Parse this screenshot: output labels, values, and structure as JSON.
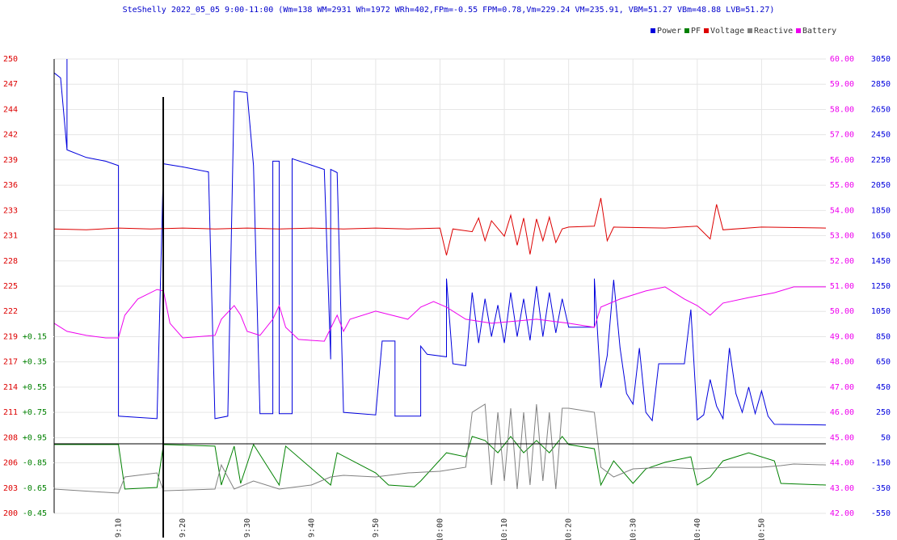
{
  "chart_data": {
    "type": "line",
    "title": "SteShelly 2022_05_05 9:00-11:00 (Wm=138 WM=2931 Wh=1972 WRh=402,FPm=-0.55 FPM=0.78,Vm=229.24 VM=235.91, VBM=51.27 VBm=48.88 LVB=51.27)",
    "xlim": [
      "9:00",
      "11:00"
    ],
    "xticks": [
      "9:10",
      "9:20",
      "9:30",
      "9:40",
      "9:50",
      "10:00",
      "10:10",
      "10:20",
      "10:30",
      "10:40",
      "10:50"
    ],
    "ylim": [
      200,
      250
    ],
    "yticks": [
      {
        "value": 250,
        "label": "250"
      },
      {
        "value": 247.22,
        "label": "247"
      },
      {
        "value": 244.44,
        "label": "244"
      },
      {
        "value": 241.67,
        "label": "242"
      },
      {
        "value": 238.89,
        "label": "239"
      },
      {
        "value": 236.11,
        "label": "236"
      },
      {
        "value": 233.33,
        "label": "233"
      },
      {
        "value": 230.56,
        "label": "231"
      },
      {
        "value": 227.78,
        "label": "228"
      },
      {
        "value": 225,
        "label": "225"
      },
      {
        "value": 222.22,
        "label": "222"
      },
      {
        "value": 219.44,
        "label": "219"
      },
      {
        "value": 216.67,
        "label": "217"
      },
      {
        "value": 213.89,
        "label": "214"
      },
      {
        "value": 211.11,
        "label": "211"
      },
      {
        "value": 208.33,
        "label": "208"
      },
      {
        "value": 205.56,
        "label": "206"
      },
      {
        "value": 202.78,
        "label": "203"
      },
      {
        "value": 200,
        "label": "200"
      }
    ],
    "pflim": [
      -0.45,
      -4.05
    ],
    "pfticks": [
      {
        "value": -1.85,
        "label": "+0.15"
      },
      {
        "value": -1.65,
        "label": "+0.35"
      },
      {
        "value": -1.45,
        "label": "+0.55"
      },
      {
        "value": -1.25,
        "label": "+0.75"
      },
      {
        "value": -1.05,
        "label": "+0.95"
      },
      {
        "value": -0.85,
        "label": "-0.85"
      },
      {
        "value": -0.65,
        "label": "-0.65"
      },
      {
        "value": -0.45,
        "label": "-0.45"
      }
    ],
    "y2lim": [
      42,
      60
    ],
    "y2ticks": [
      {
        "value": 60,
        "label": "60.00"
      },
      {
        "value": 59,
        "label": "59.00"
      },
      {
        "value": 58,
        "label": "58.00"
      },
      {
        "value": 57,
        "label": "57.00"
      },
      {
        "value": 56,
        "label": "56.00"
      },
      {
        "value": 55,
        "label": "55.00"
      },
      {
        "value": 54,
        "label": "54.00"
      },
      {
        "value": 53,
        "label": "53.00"
      },
      {
        "value": 52,
        "label": "52.00"
      },
      {
        "value": 51,
        "label": "51.00"
      },
      {
        "value": 50,
        "label": "50.00"
      },
      {
        "value": 49,
        "label": "49.00"
      },
      {
        "value": 48,
        "label": "48.00"
      },
      {
        "value": 47,
        "label": "47.00"
      },
      {
        "value": 46,
        "label": "46.00"
      },
      {
        "value": 45,
        "label": "45.00"
      },
      {
        "value": 44,
        "label": "44.00"
      },
      {
        "value": 43,
        "label": "43.00"
      },
      {
        "value": 42,
        "label": "42.00"
      }
    ],
    "y3lim": [
      -550,
      3050
    ],
    "y3ticks": [
      3050,
      2850,
      2650,
      2450,
      2250,
      2050,
      1850,
      1650,
      1450,
      1250,
      1050,
      850,
      650,
      450,
      250,
      50,
      -150,
      -350,
      -550
    ],
    "grid": true,
    "legend": "top-right",
    "series": [
      {
        "name": "Power",
        "color": "#0000dd",
        "axis": "y3",
        "x": [
          "9:00",
          "9:01",
          "9:02",
          "9:02",
          "9:02",
          "9:05",
          "9:08",
          "9:10",
          "9:10",
          "9:16",
          "9:17",
          "9:20",
          "9:24",
          "9:25",
          "9:27",
          "9:28",
          "9:30",
          "9:31",
          "9:32",
          "9:34",
          "9:34",
          "9:35",
          "9:35",
          "9:37",
          "9:37",
          "9:42",
          "9:43",
          "9:43",
          "9:44",
          "9:45",
          "9:50",
          "9:51",
          "9:53",
          "9:53",
          "9:57",
          "9:57",
          "9:58",
          "10:01",
          "10:01",
          "10:02",
          "10:04",
          "10:05",
          "10:06",
          "10:07",
          "10:08",
          "10:09",
          "10:10",
          "10:11",
          "10:12",
          "10:13",
          "10:14",
          "10:15",
          "10:16",
          "10:17",
          "10:18",
          "10:19",
          "10:20",
          "10:24",
          "10:24",
          "10:25",
          "10:26",
          "10:27",
          "10:28",
          "10:29",
          "10:30",
          "10:31",
          "10:32",
          "10:33",
          "10:34",
          "10:38",
          "10:39",
          "10:40",
          "10:41",
          "10:42",
          "10:43",
          "10:44",
          "10:45",
          "10:46",
          "10:47",
          "10:48",
          "10:49",
          "10:50",
          "10:51",
          "10:52",
          "11:00"
        ],
        "values": [
          2940,
          2900,
          2330,
          3050,
          2330,
          2270,
          2240,
          2205,
          220,
          200,
          2220,
          2195,
          2155,
          200,
          220,
          2795,
          2785,
          2205,
          240,
          240,
          2240,
          2240,
          240,
          240,
          2260,
          2175,
          670,
          2175,
          2150,
          250,
          230,
          815,
          815,
          220,
          220,
          775,
          710,
          690,
          1310,
          635,
          620,
          1200,
          800,
          1150,
          850,
          1100,
          800,
          1200,
          850,
          1150,
          820,
          1250,
          850,
          1200,
          880,
          1150,
          925,
          925,
          1310,
          445,
          700,
          1300,
          760,
          400,
          315,
          760,
          250,
          185,
          635,
          635,
          1065,
          190,
          230,
          510,
          300,
          200,
          760,
          400,
          250,
          450,
          240,
          420,
          220,
          155,
          150
        ]
      },
      {
        "name": "PF",
        "color": "#008000",
        "axis": "pf",
        "x": [
          "9:00",
          "9:10",
          "9:11",
          "9:16",
          "9:17",
          "9:25",
          "9:26",
          "9:28",
          "9:29",
          "9:31",
          "9:35",
          "9:36",
          "9:43",
          "9:44",
          "9:50",
          "9:52",
          "9:56",
          "9:57",
          "10:01",
          "10:04",
          "10:05",
          "10:07",
          "10:09",
          "10:11",
          "10:13",
          "10:15",
          "10:17",
          "10:19",
          "10:20",
          "10:24",
          "10:25",
          "10:27",
          "10:30",
          "10:32",
          "10:35",
          "10:39",
          "10:40",
          "10:42",
          "10:44",
          "10:48",
          "10:52",
          "10:53",
          "11:00"
        ],
        "values": [
          -0.995,
          -0.995,
          -0.642,
          -0.655,
          -0.995,
          -0.982,
          -0.674,
          -0.982,
          -0.687,
          -0.995,
          -0.674,
          -0.982,
          -0.674,
          -0.93,
          -0.77,
          -0.674,
          -0.661,
          -0.706,
          -0.93,
          -0.898,
          -1.059,
          -1.027,
          -0.93,
          -1.059,
          -0.93,
          -1.027,
          -0.93,
          -1.059,
          -0.995,
          -0.962,
          -0.674,
          -0.866,
          -0.687,
          -0.802,
          -0.854,
          -0.898,
          -0.674,
          -0.738,
          -0.866,
          -0.93,
          -0.866,
          -0.687,
          -0.674
        ]
      },
      {
        "name": "Voltage",
        "color": "#dd0000",
        "axis": "y",
        "x": [
          "9:00",
          "9:05",
          "9:10",
          "9:15",
          "9:20",
          "9:25",
          "9:30",
          "9:35",
          "9:40",
          "9:45",
          "9:50",
          "9:55",
          "10:00",
          "10:01",
          "10:02",
          "10:05",
          "10:06",
          "10:07",
          "10:08",
          "10:10",
          "10:11",
          "10:12",
          "10:13",
          "10:14",
          "10:15",
          "10:16",
          "10:17",
          "10:18",
          "10:19",
          "10:20",
          "10:24",
          "10:25",
          "10:26",
          "10:27",
          "10:35",
          "10:40",
          "10:42",
          "10:43",
          "10:44",
          "10:50",
          "11:00"
        ],
        "values": [
          231.3,
          231.2,
          231.4,
          231.3,
          231.4,
          231.3,
          231.4,
          231.3,
          231.4,
          231.3,
          231.4,
          231.3,
          231.4,
          228.4,
          231.3,
          231.0,
          232.5,
          230.0,
          232.2,
          230.5,
          232.8,
          229.5,
          232.5,
          228.5,
          232.4,
          230.0,
          232.6,
          229.8,
          231.3,
          231.5,
          231.6,
          234.7,
          230.0,
          231.5,
          231.4,
          231.6,
          230.2,
          234.0,
          231.2,
          231.5,
          231.4
        ]
      },
      {
        "name": "Reactive",
        "color": "#808080",
        "axis": "y3",
        "x": [
          "9:00",
          "9:10",
          "9:11",
          "9:16",
          "9:17",
          "9:25",
          "9:26",
          "9:28",
          "9:31",
          "9:35",
          "9:40",
          "9:43",
          "9:45",
          "9:50",
          "9:55",
          "10:00",
          "10:04",
          "10:05",
          "10:07",
          "10:08",
          "10:09",
          "10:10",
          "10:11",
          "10:12",
          "10:13",
          "10:14",
          "10:15",
          "10:16",
          "10:17",
          "10:18",
          "10:19",
          "10:20",
          "10:24",
          "10:25",
          "10:27",
          "10:30",
          "10:35",
          "10:40",
          "10:45",
          "10:50",
          "10:53",
          "10:55",
          "11:00"
        ],
        "values": [
          -358,
          -390,
          -262,
          -230,
          -371,
          -358,
          -166,
          -358,
          -294,
          -358,
          -326,
          -262,
          -249,
          -262,
          -230,
          -217,
          -185,
          251,
          315,
          -326,
          251,
          -294,
          283,
          -358,
          251,
          -326,
          315,
          -294,
          251,
          -358,
          283,
          283,
          251,
          -185,
          -262,
          -198,
          -185,
          -198,
          -185,
          -185,
          -172,
          -159,
          -166
        ]
      },
      {
        "name": "Battery",
        "color": "#ee00ee",
        "axis": "y2",
        "x": [
          "9:00",
          "9:02",
          "9:05",
          "9:08",
          "9:10",
          "9:11",
          "9:13",
          "9:16",
          "9:17",
          "9:18",
          "9:20",
          "9:25",
          "9:26",
          "9:28",
          "9:29",
          "9:30",
          "9:32",
          "9:34",
          "9:35",
          "9:36",
          "9:38",
          "9:42",
          "9:44",
          "9:45",
          "9:46",
          "9:50",
          "9:55",
          "9:57",
          "9:59",
          "10:01",
          "10:04",
          "10:08",
          "10:15",
          "10:20",
          "10:24",
          "10:25",
          "10:28",
          "10:32",
          "10:35",
          "10:38",
          "10:40",
          "10:42",
          "10:44",
          "10:48",
          "10:52",
          "10:55",
          "11:00"
        ],
        "values": [
          49.53,
          49.21,
          49.05,
          48.95,
          48.95,
          49.85,
          50.49,
          50.87,
          50.81,
          49.53,
          48.95,
          49.05,
          49.69,
          50.23,
          49.85,
          49.21,
          49.05,
          49.69,
          50.23,
          49.37,
          48.89,
          48.82,
          49.85,
          49.21,
          49.69,
          50.01,
          49.69,
          50.17,
          50.39,
          50.17,
          49.69,
          49.53,
          49.69,
          49.53,
          49.37,
          50.17,
          50.49,
          50.81,
          50.97,
          50.49,
          50.23,
          49.85,
          50.33,
          50.55,
          50.74,
          50.97,
          50.97
        ]
      }
    ]
  }
}
